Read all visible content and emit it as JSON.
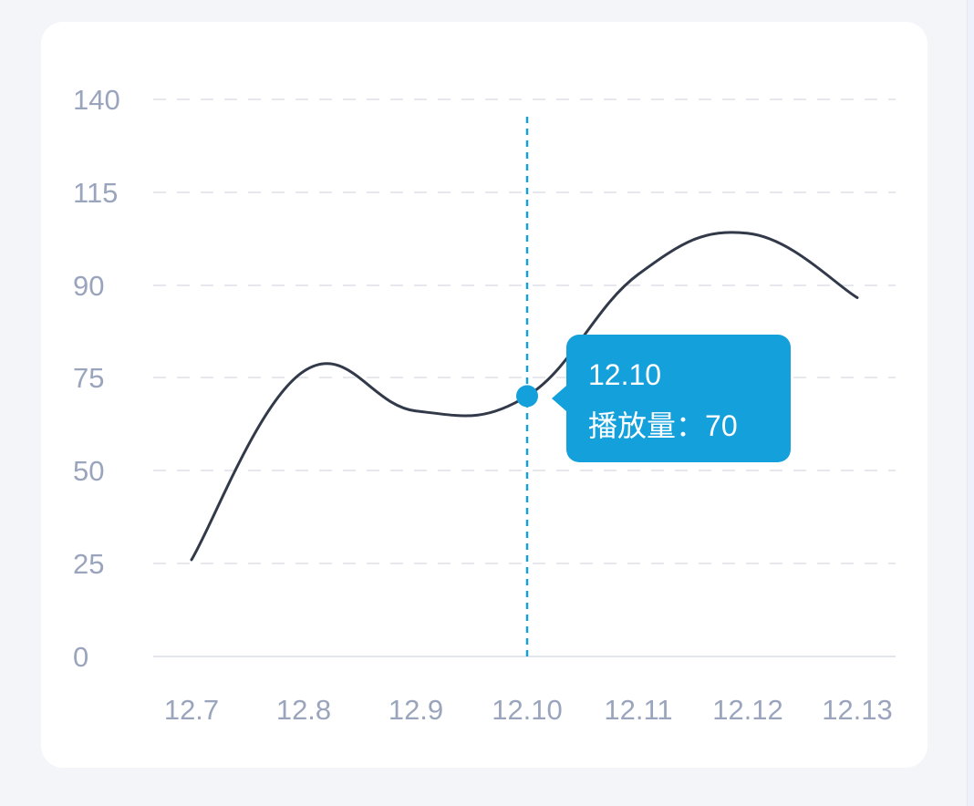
{
  "chart_data": {
    "type": "line",
    "categories": [
      "12.7",
      "12.8",
      "12.9",
      "12.10",
      "12.11",
      "12.12",
      "12.13"
    ],
    "series": [
      {
        "name": "播放量",
        "values": [
          26,
          76,
          66,
          70,
          93,
          104,
          88
        ]
      }
    ],
    "yticks": [
      "0",
      "25",
      "50",
      "75",
      "90",
      "115",
      "140"
    ],
    "ylim": [
      0,
      140
    ],
    "grid": true,
    "line_color": "#323a4a",
    "accent_color": "#14a1db",
    "highlight_index": 3
  },
  "tooltip": {
    "title": "12.10",
    "series_label": "播放量：",
    "value": "70"
  }
}
